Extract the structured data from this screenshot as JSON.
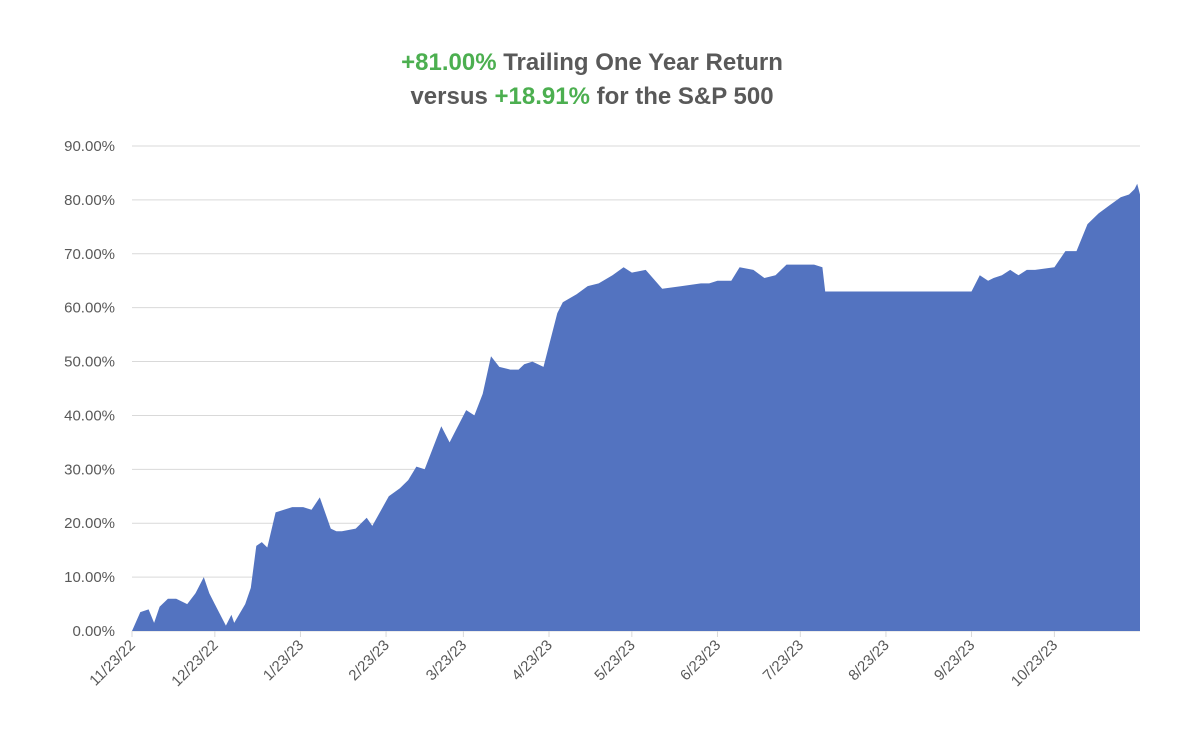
{
  "colors": {
    "area_fill": "#5373C0",
    "accent_green": "#4CAF50",
    "title_gray": "#595959",
    "grid": "#D9D9D9"
  },
  "chart_data": {
    "type": "area",
    "title_line1": {
      "highlight": "+81.00%",
      "text": " Trailing One Year Return"
    },
    "title_line2": {
      "prefix": "versus ",
      "highlight": "+18.91%",
      "suffix": " for the S&P 500"
    },
    "xlabel": "",
    "ylabel": "",
    "ylim": [
      0,
      90
    ],
    "grid": true,
    "y_ticks": [
      "0.00%",
      "10.00%",
      "20.00%",
      "30.00%",
      "40.00%",
      "50.00%",
      "60.00%",
      "70.00%",
      "80.00%",
      "90.00%"
    ],
    "x_ticks": [
      "11/23/22",
      "12/23/22",
      "1/23/23",
      "2/23/23",
      "3/23/23",
      "4/23/23",
      "5/23/23",
      "6/23/23",
      "7/23/23",
      "8/23/23",
      "9/23/23",
      "10/23/23"
    ],
    "series": [
      {
        "x": [
          "2022-11-23",
          "2022-11-26",
          "2022-11-29",
          "2022-12-01",
          "2022-12-03",
          "2022-12-06",
          "2022-12-09",
          "2022-12-13",
          "2022-12-16",
          "2022-12-19",
          "2022-12-21",
          "2022-12-23",
          "2022-12-27",
          "2022-12-29",
          "2022-12-30",
          "2023-01-03",
          "2023-01-05",
          "2023-01-07",
          "2023-01-09",
          "2023-01-11",
          "2023-01-14",
          "2023-01-17",
          "2023-01-20",
          "2023-01-24",
          "2023-01-27",
          "2023-01-30",
          "2023-02-03",
          "2023-02-05",
          "2023-02-07",
          "2023-02-12",
          "2023-02-16",
          "2023-02-18",
          "2023-02-24",
          "2023-02-28",
          "2023-03-03",
          "2023-03-06",
          "2023-03-09",
          "2023-03-12",
          "2023-03-15",
          "2023-03-18",
          "2023-03-20",
          "2023-03-24",
          "2023-03-27",
          "2023-03-30",
          "2023-04-02",
          "2023-04-05",
          "2023-04-09",
          "2023-04-12",
          "2023-04-14",
          "2023-04-17",
          "2023-04-21",
          "2023-04-23",
          "2023-04-26",
          "2023-04-28",
          "2023-05-03",
          "2023-05-07",
          "2023-05-11",
          "2023-05-16",
          "2023-05-20",
          "2023-05-23",
          "2023-05-28",
          "2023-06-03",
          "2023-06-10",
          "2023-06-17",
          "2023-06-20",
          "2023-06-23",
          "2023-06-28",
          "2023-07-01",
          "2023-07-06",
          "2023-07-10",
          "2023-07-14",
          "2023-07-18",
          "2023-07-23",
          "2023-07-28",
          "2023-07-31",
          "2023-08-01",
          "2023-08-23",
          "2023-09-23",
          "2023-09-26",
          "2023-09-29",
          "2023-10-01",
          "2023-10-04",
          "2023-10-07",
          "2023-10-10",
          "2023-10-13",
          "2023-10-16",
          "2023-10-23",
          "2023-10-27",
          "2023-10-31",
          "2023-11-04",
          "2023-11-08",
          "2023-11-12",
          "2023-11-16",
          "2023-11-19",
          "2023-11-21",
          "2023-11-22",
          "2023-11-23"
        ],
        "y": [
          0.0,
          3.5,
          4.0,
          1.5,
          4.5,
          6.0,
          6.0,
          5.0,
          7.0,
          10.0,
          7.0,
          5.0,
          1.0,
          3.0,
          1.5,
          5.0,
          8.0,
          15.8,
          16.5,
          15.5,
          22.0,
          22.5,
          23.0,
          23.0,
          22.5,
          24.8,
          19.0,
          18.5,
          18.5,
          19.0,
          21.0,
          19.5,
          25.0,
          26.5,
          28.0,
          30.5,
          30.0,
          34.0,
          38.0,
          35.0,
          37.0,
          41.0,
          40.0,
          44.0,
          51.0,
          49.0,
          48.5,
          48.5,
          49.5,
          50.0,
          49.0,
          53.0,
          59.0,
          61.0,
          62.5,
          64.0,
          64.5,
          66.0,
          67.5,
          66.5,
          67.0,
          63.5,
          64.0,
          64.5,
          64.5,
          65.0,
          65.0,
          67.5,
          67.0,
          65.5,
          66.0,
          68.0,
          68.0,
          68.0,
          67.5,
          63.0,
          63.0,
          63.0,
          66.0,
          65.0,
          65.5,
          66.0,
          67.0,
          66.0,
          67.0,
          67.0,
          67.5,
          70.5,
          70.5,
          75.5,
          77.5,
          79.0,
          80.5,
          81.0,
          82.0,
          83.0,
          81.0
        ]
      }
    ]
  }
}
